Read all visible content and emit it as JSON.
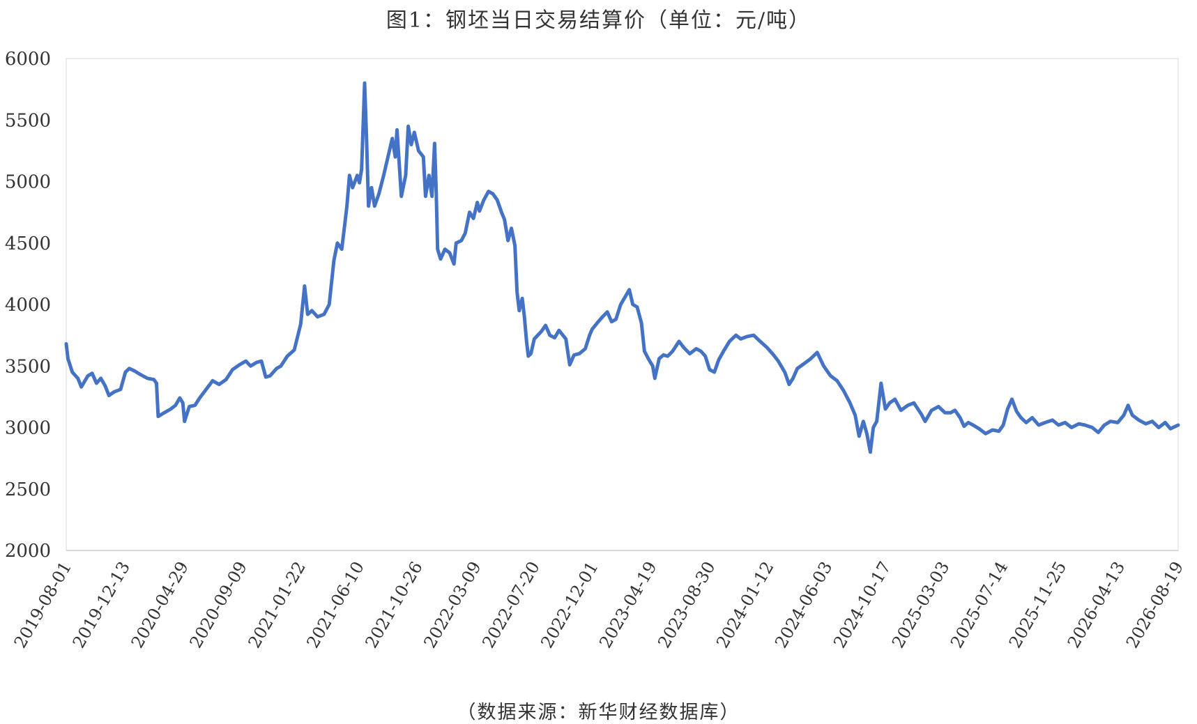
{
  "chart_data": {
    "type": "line",
    "title": "图1：钢坯当日交易结算价（单位：元/吨）",
    "source": "（数据来源：新华财经数据库）",
    "ylim": [
      2000,
      6000
    ],
    "yticks": [
      "6000",
      "5500",
      "5000",
      "4500",
      "4000",
      "3500",
      "3000",
      "2500",
      "2000"
    ],
    "xticks": [
      "2019-08-01",
      "2019-12-13",
      "2020-04-29",
      "2020-09-09",
      "2021-01-22",
      "2021-06-10",
      "2021-10-26",
      "2022-03-09",
      "2022-07-20",
      "2022-12-01",
      "2023-04-19",
      "2023-08-30",
      "2024-01-12",
      "2024-06-03",
      "2024-10-17",
      "2025-03-03",
      "2025-07-14",
      "2025-11-25",
      "2026-04-13",
      "2026-08-19"
    ],
    "grid": false,
    "legend": "none",
    "line_color": "#4472C4",
    "series": [
      {
        "points": [
          [
            "2019-08-01",
            3680
          ],
          [
            "2019-08-05",
            3560
          ],
          [
            "2019-08-15",
            3450
          ],
          [
            "2019-08-28",
            3400
          ],
          [
            "2019-09-05",
            3330
          ],
          [
            "2019-09-20",
            3420
          ],
          [
            "2019-09-30",
            3440
          ],
          [
            "2019-10-10",
            3360
          ],
          [
            "2019-10-20",
            3400
          ],
          [
            "2019-10-30",
            3340
          ],
          [
            "2019-11-08",
            3260
          ],
          [
            "2019-11-20",
            3290
          ],
          [
            "2019-12-05",
            3310
          ],
          [
            "2019-12-16",
            3450
          ],
          [
            "2019-12-25",
            3480
          ],
          [
            "2020-01-06",
            3460
          ],
          [
            "2020-01-20",
            3430
          ],
          [
            "2020-02-05",
            3400
          ],
          [
            "2020-02-20",
            3390
          ],
          [
            "2020-02-26",
            3360
          ],
          [
            "2020-03-01",
            3090
          ],
          [
            "2020-03-15",
            3120
          ],
          [
            "2020-03-30",
            3150
          ],
          [
            "2020-04-10",
            3180
          ],
          [
            "2020-04-20",
            3240
          ],
          [
            "2020-04-27",
            3200
          ],
          [
            "2020-05-01",
            3050
          ],
          [
            "2020-05-12",
            3170
          ],
          [
            "2020-05-25",
            3180
          ],
          [
            "2020-06-05",
            3240
          ],
          [
            "2020-06-20",
            3310
          ],
          [
            "2020-07-05",
            3380
          ],
          [
            "2020-07-20",
            3350
          ],
          [
            "2020-08-05",
            3390
          ],
          [
            "2020-08-20",
            3470
          ],
          [
            "2020-09-05",
            3510
          ],
          [
            "2020-09-20",
            3540
          ],
          [
            "2020-10-01",
            3500
          ],
          [
            "2020-10-15",
            3530
          ],
          [
            "2020-10-26",
            3540
          ],
          [
            "2020-11-05",
            3410
          ],
          [
            "2020-11-15",
            3420
          ],
          [
            "2020-11-30",
            3480
          ],
          [
            "2020-12-10",
            3500
          ],
          [
            "2020-12-25",
            3580
          ],
          [
            "2021-01-10",
            3630
          ],
          [
            "2021-01-25",
            3840
          ],
          [
            "2021-02-03",
            4150
          ],
          [
            "2021-02-10",
            3920
          ],
          [
            "2021-02-20",
            3950
          ],
          [
            "2021-03-05",
            3900
          ],
          [
            "2021-03-20",
            3920
          ],
          [
            "2021-04-01",
            4000
          ],
          [
            "2021-04-12",
            4360
          ],
          [
            "2021-04-20",
            4500
          ],
          [
            "2021-04-30",
            4450
          ],
          [
            "2021-05-07",
            4650
          ],
          [
            "2021-05-12",
            4800
          ],
          [
            "2021-05-18",
            5050
          ],
          [
            "2021-05-25",
            4950
          ],
          [
            "2021-06-05",
            5050
          ],
          [
            "2021-06-10",
            4990
          ],
          [
            "2021-06-15",
            5100
          ],
          [
            "2021-06-22",
            5800
          ],
          [
            "2021-06-26",
            5400
          ],
          [
            "2021-07-01",
            4800
          ],
          [
            "2021-07-08",
            4950
          ],
          [
            "2021-07-15",
            4800
          ],
          [
            "2021-07-25",
            4900
          ],
          [
            "2021-08-05",
            5050
          ],
          [
            "2021-08-15",
            5200
          ],
          [
            "2021-08-25",
            5350
          ],
          [
            "2021-09-01",
            5200
          ],
          [
            "2021-09-05",
            5420
          ],
          [
            "2021-09-10",
            5150
          ],
          [
            "2021-09-15",
            4880
          ],
          [
            "2021-09-25",
            5050
          ],
          [
            "2021-10-01",
            5450
          ],
          [
            "2021-10-08",
            5300
          ],
          [
            "2021-10-15",
            5400
          ],
          [
            "2021-10-25",
            5250
          ],
          [
            "2021-11-05",
            5200
          ],
          [
            "2021-11-10",
            4880
          ],
          [
            "2021-11-18",
            5050
          ],
          [
            "2021-11-25",
            4880
          ],
          [
            "2021-12-01",
            5310
          ],
          [
            "2021-12-05",
            4900
          ],
          [
            "2021-12-08",
            4450
          ],
          [
            "2021-12-15",
            4370
          ],
          [
            "2021-12-25",
            4450
          ],
          [
            "2022-01-05",
            4420
          ],
          [
            "2022-01-15",
            4330
          ],
          [
            "2022-01-20",
            4500
          ],
          [
            "2022-02-01",
            4520
          ],
          [
            "2022-02-10",
            4580
          ],
          [
            "2022-02-20",
            4750
          ],
          [
            "2022-03-01",
            4700
          ],
          [
            "2022-03-10",
            4830
          ],
          [
            "2022-03-15",
            4760
          ],
          [
            "2022-03-25",
            4850
          ],
          [
            "2022-04-05",
            4920
          ],
          [
            "2022-04-15",
            4900
          ],
          [
            "2022-04-25",
            4850
          ],
          [
            "2022-05-05",
            4750
          ],
          [
            "2022-05-12",
            4690
          ],
          [
            "2022-05-20",
            4520
          ],
          [
            "2022-05-28",
            4620
          ],
          [
            "2022-06-05",
            4480
          ],
          [
            "2022-06-10",
            4100
          ],
          [
            "2022-06-15",
            3950
          ],
          [
            "2022-06-22",
            4050
          ],
          [
            "2022-06-27",
            3900
          ],
          [
            "2022-07-02",
            3700
          ],
          [
            "2022-07-06",
            3580
          ],
          [
            "2022-07-12",
            3600
          ],
          [
            "2022-07-20",
            3720
          ],
          [
            "2022-08-05",
            3780
          ],
          [
            "2022-08-15",
            3830
          ],
          [
            "2022-08-25",
            3750
          ],
          [
            "2022-09-05",
            3730
          ],
          [
            "2022-09-15",
            3790
          ],
          [
            "2022-10-01",
            3720
          ],
          [
            "2022-10-10",
            3510
          ],
          [
            "2022-10-20",
            3590
          ],
          [
            "2022-11-01",
            3600
          ],
          [
            "2022-11-15",
            3640
          ],
          [
            "2022-11-25",
            3750
          ],
          [
            "2022-12-01",
            3800
          ],
          [
            "2022-12-15",
            3860
          ],
          [
            "2022-12-25",
            3900
          ],
          [
            "2023-01-05",
            3940
          ],
          [
            "2023-01-15",
            3860
          ],
          [
            "2023-01-25",
            3880
          ],
          [
            "2023-02-05",
            4000
          ],
          [
            "2023-02-15",
            4060
          ],
          [
            "2023-02-25",
            4120
          ],
          [
            "2023-03-05",
            4000
          ],
          [
            "2023-03-15",
            3980
          ],
          [
            "2023-03-25",
            3850
          ],
          [
            "2023-04-01",
            3620
          ],
          [
            "2023-04-10",
            3560
          ],
          [
            "2023-04-20",
            3500
          ],
          [
            "2023-04-25",
            3400
          ],
          [
            "2023-05-05",
            3560
          ],
          [
            "2023-05-15",
            3590
          ],
          [
            "2023-05-25",
            3580
          ],
          [
            "2023-06-05",
            3620
          ],
          [
            "2023-06-20",
            3700
          ],
          [
            "2023-07-01",
            3650
          ],
          [
            "2023-07-15",
            3600
          ],
          [
            "2023-07-30",
            3640
          ],
          [
            "2023-08-10",
            3620
          ],
          [
            "2023-08-20",
            3580
          ],
          [
            "2023-08-30",
            3470
          ],
          [
            "2023-09-10",
            3450
          ],
          [
            "2023-09-20",
            3550
          ],
          [
            "2023-10-01",
            3620
          ],
          [
            "2023-10-15",
            3700
          ],
          [
            "2023-10-30",
            3750
          ],
          [
            "2023-11-10",
            3720
          ],
          [
            "2023-11-25",
            3740
          ],
          [
            "2023-12-10",
            3750
          ],
          [
            "2023-12-25",
            3700
          ],
          [
            "2024-01-10",
            3650
          ],
          [
            "2024-01-25",
            3590
          ],
          [
            "2024-02-05",
            3540
          ],
          [
            "2024-02-20",
            3450
          ],
          [
            "2024-03-01",
            3350
          ],
          [
            "2024-03-10",
            3400
          ],
          [
            "2024-03-20",
            3480
          ],
          [
            "2024-04-05",
            3520
          ],
          [
            "2024-04-20",
            3560
          ],
          [
            "2024-05-05",
            3610
          ],
          [
            "2024-05-20",
            3500
          ],
          [
            "2024-06-05",
            3420
          ],
          [
            "2024-06-20",
            3380
          ],
          [
            "2024-07-05",
            3300
          ],
          [
            "2024-07-20",
            3200
          ],
          [
            "2024-08-01",
            3100
          ],
          [
            "2024-08-10",
            2930
          ],
          [
            "2024-08-20",
            3050
          ],
          [
            "2024-08-28",
            2950
          ],
          [
            "2024-09-05",
            2800
          ],
          [
            "2024-09-12",
            3000
          ],
          [
            "2024-09-20",
            3050
          ],
          [
            "2024-09-30",
            3360
          ],
          [
            "2024-10-10",
            3150
          ],
          [
            "2024-10-20",
            3200
          ],
          [
            "2024-11-01",
            3230
          ],
          [
            "2024-11-15",
            3140
          ],
          [
            "2024-12-01",
            3180
          ],
          [
            "2024-12-15",
            3200
          ],
          [
            "2025-01-01",
            3110
          ],
          [
            "2025-01-10",
            3050
          ],
          [
            "2025-01-25",
            3140
          ],
          [
            "2025-02-10",
            3170
          ],
          [
            "2025-02-25",
            3120
          ],
          [
            "2025-03-10",
            3120
          ],
          [
            "2025-03-20",
            3140
          ],
          [
            "2025-04-01",
            3080
          ],
          [
            "2025-04-10",
            3010
          ],
          [
            "2025-04-20",
            3040
          ],
          [
            "2025-05-01",
            3020
          ],
          [
            "2025-05-15",
            2990
          ],
          [
            "2025-05-30",
            2950
          ],
          [
            "2025-06-15",
            2980
          ],
          [
            "2025-06-30",
            2970
          ],
          [
            "2025-07-10",
            3020
          ],
          [
            "2025-07-20",
            3150
          ],
          [
            "2025-07-30",
            3230
          ],
          [
            "2025-08-10",
            3130
          ],
          [
            "2025-08-20",
            3080
          ],
          [
            "2025-09-01",
            3040
          ],
          [
            "2025-09-15",
            3080
          ],
          [
            "2025-09-30",
            3020
          ],
          [
            "2025-10-15",
            3040
          ],
          [
            "2025-11-01",
            3060
          ],
          [
            "2025-11-15",
            3020
          ],
          [
            "2025-11-30",
            3040
          ],
          [
            "2025-12-15",
            3000
          ],
          [
            "2026-01-01",
            3030
          ],
          [
            "2026-01-15",
            3020
          ],
          [
            "2026-02-01",
            3000
          ],
          [
            "2026-02-15",
            2960
          ],
          [
            "2026-03-01",
            3020
          ],
          [
            "2026-03-15",
            3050
          ],
          [
            "2026-04-01",
            3040
          ],
          [
            "2026-04-15",
            3100
          ],
          [
            "2026-04-25",
            3180
          ],
          [
            "2026-05-05",
            3100
          ],
          [
            "2026-05-20",
            3060
          ],
          [
            "2026-06-05",
            3030
          ],
          [
            "2026-06-20",
            3050
          ],
          [
            "2026-07-05",
            3000
          ],
          [
            "2026-07-20",
            3040
          ],
          [
            "2026-08-01",
            2990
          ],
          [
            "2026-08-19",
            3020
          ]
        ]
      }
    ]
  }
}
